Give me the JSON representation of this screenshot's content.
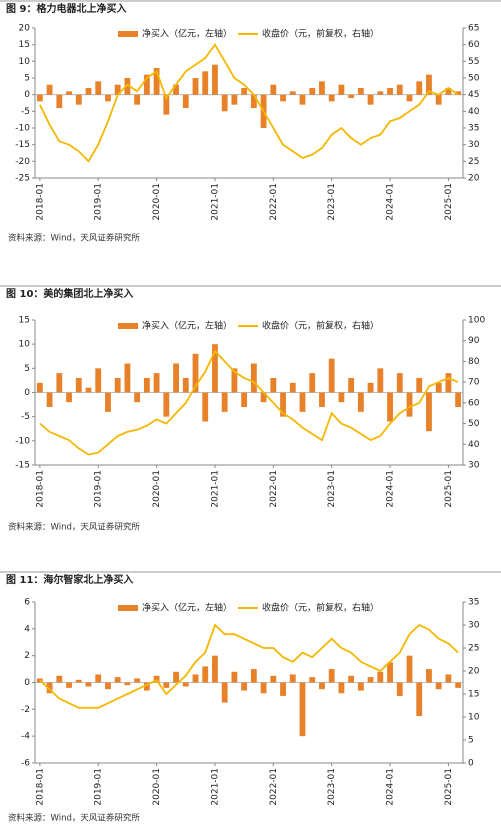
{
  "chart_data": [
    {
      "type": "combo",
      "title": "图 9：格力电器北上净买入",
      "source": "资料来源：Wind，天风证券研究所",
      "x": [
        "2018-01",
        "2018-03",
        "2018-05",
        "2018-07",
        "2018-09",
        "2018-11",
        "2019-01",
        "2019-03",
        "2019-05",
        "2019-07",
        "2019-09",
        "2019-11",
        "2020-01",
        "2020-03",
        "2020-05",
        "2020-07",
        "2020-09",
        "2020-11",
        "2021-01",
        "2021-03",
        "2021-05",
        "2021-07",
        "2021-09",
        "2021-11",
        "2022-01",
        "2022-03",
        "2022-05",
        "2022-07",
        "2022-09",
        "2022-11",
        "2023-01",
        "2023-03",
        "2023-05",
        "2023-07",
        "2023-09",
        "2023-11",
        "2024-01",
        "2024-03",
        "2024-05",
        "2024-07",
        "2024-09",
        "2024-11",
        "2025-01",
        "2025-03"
      ],
      "xticks": [
        "2018-01",
        "2019-01",
        "2020-01",
        "2021-01",
        "2022-01",
        "2023-01",
        "2024-01",
        "2025-01"
      ],
      "ylim": [
        -25,
        20
      ],
      "yticks": [
        -25,
        -20,
        -15,
        -10,
        -5,
        0,
        5,
        10,
        15,
        20
      ],
      "y2lim": [
        20,
        65
      ],
      "y2ticks": [
        20,
        25,
        30,
        35,
        40,
        45,
        50,
        55,
        60,
        65
      ],
      "series": [
        {
          "name": "净买入（亿元，左轴）",
          "color": "#e8822a",
          "values": [
            -2,
            3,
            -4,
            1,
            -3,
            2,
            4,
            -2,
            3,
            5,
            -3,
            6,
            8,
            -6,
            3,
            -4,
            5,
            7,
            9,
            -5,
            -3,
            2,
            -4,
            -10,
            3,
            -2,
            1,
            -3,
            2,
            4,
            -2,
            3,
            -1,
            2,
            -3,
            1,
            2,
            3,
            -2,
            4,
            6,
            -3,
            2,
            1
          ]
        },
        {
          "name": "收盘价（元，前复权，右轴）",
          "color": "#f5b800",
          "axis": "y2",
          "values": [
            42,
            36,
            31,
            30,
            28,
            25,
            30,
            37,
            45,
            48,
            46,
            50,
            52,
            44,
            48,
            52,
            54,
            56,
            60,
            55,
            50,
            48,
            45,
            40,
            35,
            30,
            28,
            26,
            27,
            29,
            33,
            35,
            32,
            30,
            32,
            33,
            37,
            38,
            40,
            42,
            46,
            45,
            47,
            45
          ]
        }
      ]
    },
    {
      "type": "combo",
      "title": "图 10：美的集团北上净买入",
      "source": "资料来源：Wind，天风证券研究所",
      "x": [
        "2018-01",
        "2018-03",
        "2018-05",
        "2018-07",
        "2018-09",
        "2018-11",
        "2019-01",
        "2019-03",
        "2019-05",
        "2019-07",
        "2019-09",
        "2019-11",
        "2020-01",
        "2020-03",
        "2020-05",
        "2020-07",
        "2020-09",
        "2020-11",
        "2021-01",
        "2021-03",
        "2021-05",
        "2021-07",
        "2021-09",
        "2021-11",
        "2022-01",
        "2022-03",
        "2022-05",
        "2022-07",
        "2022-09",
        "2022-11",
        "2023-01",
        "2023-03",
        "2023-05",
        "2023-07",
        "2023-09",
        "2023-11",
        "2024-01",
        "2024-03",
        "2024-05",
        "2024-07",
        "2024-09",
        "2024-11",
        "2025-01",
        "2025-03"
      ],
      "xticks": [
        "2018-01",
        "2019-01",
        "2020-01",
        "2021-01",
        "2022-01",
        "2023-01",
        "2024-01",
        "2025-01"
      ],
      "ylim": [
        -15,
        15
      ],
      "yticks": [
        -15,
        -10,
        -5,
        0,
        5,
        10,
        15
      ],
      "y2lim": [
        30,
        100
      ],
      "y2ticks": [
        30,
        40,
        50,
        60,
        70,
        80,
        90,
        100
      ],
      "series": [
        {
          "name": "净买入（亿元，左轴）",
          "color": "#e8822a",
          "values": [
            2,
            -3,
            4,
            -2,
            3,
            1,
            5,
            -4,
            3,
            6,
            -2,
            3,
            4,
            -5,
            6,
            3,
            8,
            -6,
            10,
            -4,
            5,
            -3,
            6,
            -2,
            3,
            -5,
            2,
            -4,
            4,
            -3,
            7,
            -2,
            3,
            -4,
            2,
            5,
            -6,
            4,
            -5,
            3,
            -8,
            2,
            4,
            -3
          ]
        },
        {
          "name": "收盘价（元，前复权，右轴）",
          "color": "#f5b800",
          "axis": "y2",
          "values": [
            50,
            46,
            44,
            42,
            38,
            35,
            36,
            40,
            44,
            46,
            47,
            49,
            52,
            50,
            55,
            60,
            68,
            75,
            85,
            80,
            75,
            72,
            70,
            65,
            60,
            55,
            52,
            48,
            45,
            42,
            55,
            50,
            48,
            45,
            42,
            44,
            50,
            55,
            58,
            60,
            68,
            70,
            72,
            70
          ]
        }
      ]
    },
    {
      "type": "combo",
      "title": "图 11：海尔智家北上净买入",
      "source": "资料来源：Wind，天风证券研究所",
      "x": [
        "2018-01",
        "2018-03",
        "2018-05",
        "2018-07",
        "2018-09",
        "2018-11",
        "2019-01",
        "2019-03",
        "2019-05",
        "2019-07",
        "2019-09",
        "2019-11",
        "2020-01",
        "2020-03",
        "2020-05",
        "2020-07",
        "2020-09",
        "2020-11",
        "2021-01",
        "2021-03",
        "2021-05",
        "2021-07",
        "2021-09",
        "2021-11",
        "2022-01",
        "2022-03",
        "2022-05",
        "2022-07",
        "2022-09",
        "2022-11",
        "2023-01",
        "2023-03",
        "2023-05",
        "2023-07",
        "2023-09",
        "2023-11",
        "2024-01",
        "2024-03",
        "2024-05",
        "2024-07",
        "2024-09",
        "2024-11",
        "2025-01",
        "2025-03"
      ],
      "xticks": [
        "2018-01",
        "2019-01",
        "2020-01",
        "2021-01",
        "2022-01",
        "2023-01",
        "2024-01",
        "2025-01"
      ],
      "ylim": [
        -6,
        6
      ],
      "yticks": [
        -6,
        -4,
        -2,
        0,
        2,
        4,
        6
      ],
      "y2lim": [
        0,
        35
      ],
      "y2ticks": [
        0,
        5,
        10,
        15,
        20,
        25,
        30,
        35
      ],
      "series": [
        {
          "name": "净买入（亿元，左轴）",
          "color": "#e8822a",
          "values": [
            0.3,
            -0.8,
            0.5,
            -0.4,
            0.2,
            -0.3,
            0.6,
            -0.5,
            0.4,
            -0.2,
            0.3,
            -0.6,
            0.5,
            -0.4,
            0.8,
            -0.3,
            0.6,
            1.2,
            2,
            -1.5,
            0.8,
            -0.6,
            1,
            -0.8,
            0.5,
            -1,
            0.6,
            -4,
            0.4,
            -0.5,
            1,
            -0.8,
            0.5,
            -0.6,
            0.4,
            0.8,
            1.5,
            -1,
            2,
            -2.5,
            1,
            -0.5,
            0.6,
            -0.4
          ]
        },
        {
          "name": "收盘价（元，前复权，右轴）",
          "color": "#f5b800",
          "axis": "y2",
          "values": [
            18,
            16,
            14,
            13,
            12,
            12,
            12,
            13,
            14,
            15,
            16,
            17,
            18,
            15,
            17,
            19,
            22,
            24,
            30,
            28,
            28,
            27,
            26,
            25,
            25,
            23,
            22,
            24,
            23,
            25,
            27,
            25,
            24,
            22,
            21,
            20,
            22,
            24,
            28,
            30,
            29,
            27,
            26,
            24
          ]
        }
      ]
    }
  ]
}
